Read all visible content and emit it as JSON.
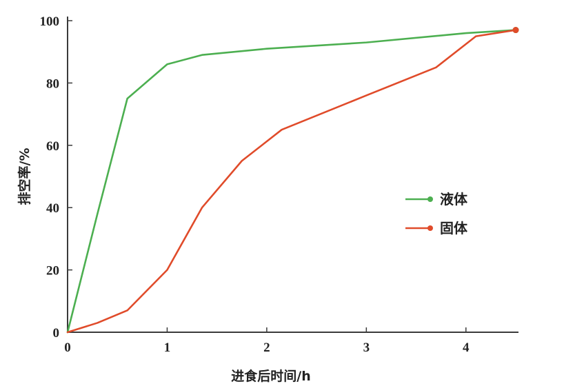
{
  "chart_data": {
    "type": "line",
    "xlabel": "进食后时间/h",
    "ylabel": "排空率/%",
    "xlim": [
      0,
      4.5
    ],
    "ylim": [
      0,
      100
    ],
    "xticks": [
      "0",
      "1",
      "2",
      "3",
      "4"
    ],
    "yticks": [
      "0",
      "20",
      "40",
      "60",
      "80",
      "100"
    ],
    "grid": false,
    "legend_position": "right-middle",
    "series": [
      {
        "name": "液体",
        "color": "#4caf50",
        "x": [
          0,
          0.3,
          0.6,
          1.0,
          1.35,
          2.0,
          3.0,
          4.0,
          4.5
        ],
        "y": [
          0,
          38,
          75,
          86,
          89,
          91,
          93,
          96,
          97
        ]
      },
      {
        "name": "固体",
        "color": "#e04b2a",
        "x": [
          0,
          0.3,
          0.6,
          1.0,
          1.35,
          1.75,
          2.15,
          3.0,
          3.7,
          4.1,
          4.5
        ],
        "y": [
          0,
          3,
          7,
          20,
          40,
          55,
          65,
          76,
          85,
          95,
          97
        ]
      }
    ]
  }
}
